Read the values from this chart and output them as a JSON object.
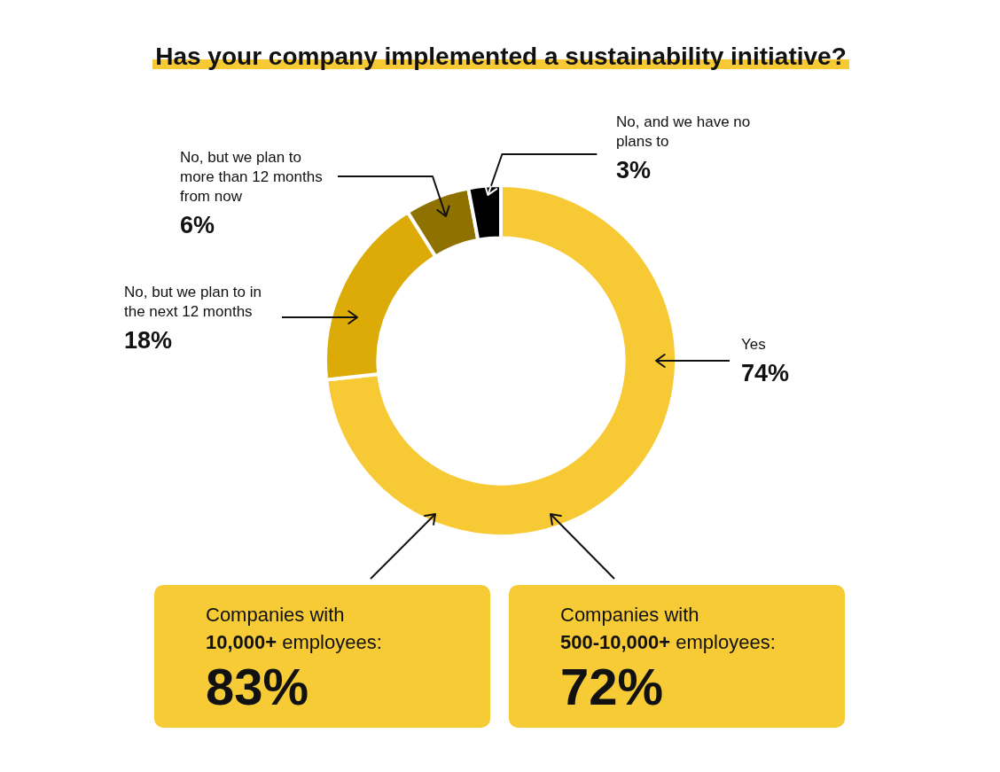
{
  "chart_data": {
    "type": "donut",
    "title": "Has your company implemented a sustainability initiative?",
    "categories": [
      "Yes",
      "No, but we plan to in the next 12 months",
      "No, but we plan to more than 12 months from now",
      "No, and we have no plans to"
    ],
    "values": [
      74,
      18,
      6,
      3
    ],
    "value_labels": [
      "74%",
      "18%",
      "6%",
      "3%"
    ],
    "colors": [
      "#f7ca35",
      "#dcab08",
      "#8f7100",
      "#000000"
    ],
    "annotations": [
      "Companies with\n10,000+ employees:\n83%",
      "Companies with\n500-10,000+ employees:\n72%"
    ]
  }
}
